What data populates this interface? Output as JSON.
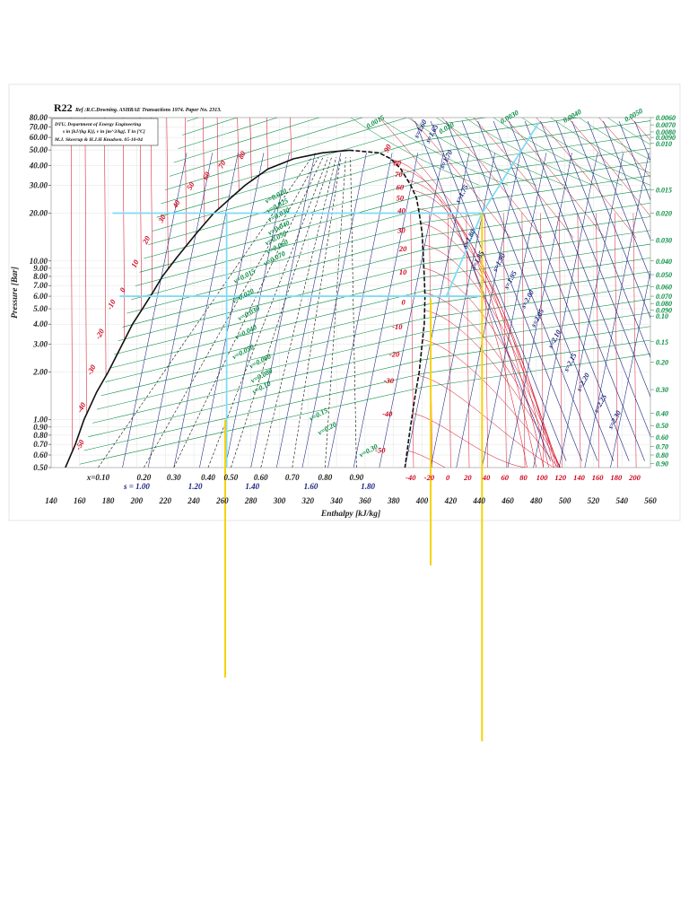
{
  "chart_data": {
    "type": "line",
    "title": "R22",
    "reference": "Ref :R.C.Downing. ASHRAE Transactions 1974. Paper No. 2313.",
    "legend_box": {
      "line1": "DTU, Department of Energy Engineering",
      "line2": "s in [kJ/(kg K)], v in [m^3/kg], T in [ºC]",
      "line3": "M.J. Skovrup & H.J.H Knudsen. 05-10-04"
    },
    "xlabel": "Enthalpy [kJ/kg]",
    "ylabel": "Pressure [Bar]",
    "xlim": [
      140,
      560
    ],
    "ylim": [
      0.5,
      80
    ],
    "yscale": "log",
    "x_ticks": [
      "140",
      "160",
      "180",
      "200",
      "220",
      "240",
      "260",
      "280",
      "300",
      "320",
      "340",
      "360",
      "380",
      "400",
      "420",
      "440",
      "460",
      "480",
      "500",
      "520",
      "540",
      "560"
    ],
    "y_ticks": [
      {
        "v": 80,
        "label": "80.00"
      },
      {
        "v": 70,
        "label": "70.00"
      },
      {
        "v": 60,
        "label": "60.00"
      },
      {
        "v": 50,
        "label": "50.00"
      },
      {
        "v": 40,
        "label": "40.00"
      },
      {
        "v": 30,
        "label": "30.00"
      },
      {
        "v": 20,
        "label": "20.00"
      },
      {
        "v": 10,
        "label": "10.00"
      },
      {
        "v": 9,
        "label": "9.00"
      },
      {
        "v": 8,
        "label": "8.00"
      },
      {
        "v": 7,
        "label": "7.00"
      },
      {
        "v": 6,
        "label": "6.00"
      },
      {
        "v": 5,
        "label": "5.00"
      },
      {
        "v": 4,
        "label": "4.00"
      },
      {
        "v": 3,
        "label": "3.00"
      },
      {
        "v": 2,
        "label": "2.00"
      },
      {
        "v": 1,
        "label": "1.00"
      },
      {
        "v": 0.9,
        "label": "0.90"
      },
      {
        "v": 0.8,
        "label": "0.80"
      },
      {
        "v": 0.7,
        "label": "0.70"
      },
      {
        "v": 0.6,
        "label": "0.60"
      },
      {
        "v": 0.5,
        "label": "0.50"
      }
    ],
    "x_quality_labels": [
      {
        "h": 173,
        "label": "x=0.10"
      },
      {
        "h": 205,
        "label": "0.20"
      },
      {
        "h": 226,
        "label": "0.30"
      },
      {
        "h": 250,
        "label": "0.40"
      },
      {
        "h": 266,
        "label": "0.50"
      },
      {
        "h": 287,
        "label": "0.60"
      },
      {
        "h": 309,
        "label": "0.70"
      },
      {
        "h": 332,
        "label": "0.80"
      },
      {
        "h": 354,
        "label": "0.90"
      }
    ],
    "s_bottom_labels": [
      {
        "h": 200,
        "label": "s = 1.00"
      },
      {
        "h": 241,
        "label": "1.20"
      },
      {
        "h": 281,
        "label": "1.40"
      },
      {
        "h": 322,
        "label": "1.60"
      },
      {
        "h": 362,
        "label": "1.80"
      }
    ],
    "bottom_temp_labels": [
      {
        "h": 392,
        "label": "-40"
      },
      {
        "h": 405,
        "label": "-20"
      },
      {
        "h": 418,
        "label": "0"
      },
      {
        "h": 432,
        "label": "20"
      },
      {
        "h": 445,
        "label": "40"
      },
      {
        "h": 458,
        "label": "60"
      },
      {
        "h": 471,
        "label": "80"
      },
      {
        "h": 484,
        "label": "100"
      },
      {
        "h": 497,
        "label": "120"
      },
      {
        "h": 510,
        "label": "140"
      },
      {
        "h": 523,
        "label": "160"
      },
      {
        "h": 536,
        "label": "180"
      },
      {
        "h": 549,
        "label": "200"
      }
    ],
    "saturation_liquid": [
      [
        150,
        0.5
      ],
      [
        157,
        0.7
      ],
      [
        163,
        1.0
      ],
      [
        172,
        1.5
      ],
      [
        180,
        2.0
      ],
      [
        190,
        3.0
      ],
      [
        197,
        4.0
      ],
      [
        204,
        5.0
      ],
      [
        212,
        6.5
      ],
      [
        218,
        8.0
      ],
      [
        228,
        10.5
      ],
      [
        242,
        15
      ],
      [
        254,
        20
      ],
      [
        266,
        25
      ],
      [
        276,
        30
      ],
      [
        292,
        38
      ],
      [
        310,
        44
      ],
      [
        330,
        48
      ],
      [
        349,
        49.8
      ]
    ],
    "saturation_vapor": [
      [
        349,
        49.8
      ],
      [
        370,
        48
      ],
      [
        378,
        44
      ],
      [
        385,
        38
      ],
      [
        392,
        30
      ],
      [
        396,
        25
      ],
      [
        398,
        20
      ],
      [
        400,
        15
      ],
      [
        401,
        10
      ],
      [
        401.5,
        8
      ],
      [
        402,
        6
      ],
      [
        401.5,
        4
      ],
      [
        400,
        3
      ],
      [
        398,
        2
      ],
      [
        395,
        1.4
      ],
      [
        391,
        0.8
      ],
      [
        388,
        0.5
      ]
    ],
    "left_temp_labels": [
      {
        "t": "-50",
        "h": 160,
        "p": 0.64
      },
      {
        "t": "-40",
        "h": 161,
        "p": 1.1
      },
      {
        "t": "-30",
        "h": 168,
        "p": 1.9
      },
      {
        "t": "-20",
        "h": 174,
        "p": 3.2
      },
      {
        "t": "-10",
        "h": 182,
        "p": 4.9
      },
      {
        "t": "0",
        "h": 191,
        "p": 6.3
      },
      {
        "t": "10",
        "h": 199,
        "p": 9.0
      },
      {
        "t": "20",
        "h": 207,
        "p": 12.7
      },
      {
        "t": "30",
        "h": 218,
        "p": 17.3
      },
      {
        "t": "40",
        "h": 228,
        "p": 21.4
      },
      {
        "t": "50",
        "h": 238,
        "p": 27.8
      },
      {
        "t": "60",
        "h": 249,
        "p": 32.2
      },
      {
        "t": "70",
        "h": 260,
        "p": 38.0
      },
      {
        "t": "80",
        "h": 274,
        "p": 43.5
      },
      {
        "t": "90",
        "h": 376,
        "p": 48.0
      }
    ],
    "right_temp_labels": [
      {
        "t": "80",
        "h": 394,
        "p": 40
      },
      {
        "t": "70",
        "h": 395,
        "p": 34
      },
      {
        "t": "60",
        "h": 396,
        "p": 28
      },
      {
        "t": "50",
        "h": 396,
        "p": 24
      },
      {
        "t": "40",
        "h": 397,
        "p": 20
      },
      {
        "t": "30",
        "h": 397,
        "p": 15
      },
      {
        "t": "20",
        "h": 398,
        "p": 11.5
      },
      {
        "t": "10",
        "h": 398,
        "p": 8.2
      },
      {
        "t": "0",
        "h": 397,
        "p": 5.3
      },
      {
        "t": "-10",
        "h": 395,
        "p": 3.7
      },
      {
        "t": "-20",
        "h": 393,
        "p": 2.5
      },
      {
        "t": "-30",
        "h": 389,
        "p": 1.7
      },
      {
        "t": "-40",
        "h": 388,
        "p": 1.05
      },
      {
        "t": "-50",
        "h": 383,
        "p": 0.62
      }
    ],
    "v_inner_labels": [
      {
        "t": "v=0.020",
        "h": 291,
        "p": 23
      },
      {
        "t": "v=0.025",
        "h": 292,
        "p": 20
      },
      {
        "t": "v=0.030",
        "h": 293,
        "p": 17.5
      },
      {
        "t": "v=0.040",
        "h": 293,
        "p": 14.5
      },
      {
        "t": "v=0.050",
        "h": 291,
        "p": 12.5
      },
      {
        "t": "v=0.060",
        "h": 292,
        "p": 11
      },
      {
        "t": "v=0.070",
        "h": 290,
        "p": 9.3
      },
      {
        "t": "v=0.015",
        "h": 269,
        "p": 7.2
      },
      {
        "t": "v=0.020",
        "h": 268,
        "p": 5.4
      },
      {
        "t": "v=0.030",
        "h": 272,
        "p": 4.2
      },
      {
        "t": "v=0.040",
        "h": 270,
        "p": 3.2
      },
      {
        "t": "v=0.050",
        "h": 268,
        "p": 2.4
      },
      {
        "t": "v=0.060",
        "h": 280,
        "p": 2.1
      },
      {
        "t": "v=0.080",
        "h": 281,
        "p": 1.7
      },
      {
        "t": "v=0.10",
        "h": 282,
        "p": 1.45
      },
      {
        "t": "v=0.15",
        "h": 322,
        "p": 0.98
      },
      {
        "t": "v=0.20",
        "h": 328,
        "p": 0.8
      },
      {
        "t": "v=0.30",
        "h": 357,
        "p": 0.58
      }
    ],
    "v_right_labels": [
      {
        "t": "0.0060",
        "p": 80
      },
      {
        "t": "0.0070",
        "p": 72
      },
      {
        "t": "0.0080",
        "p": 65
      },
      {
        "t": "0.0090",
        "p": 60
      },
      {
        "t": "0.010",
        "p": 55
      },
      {
        "t": "0.015",
        "p": 28
      },
      {
        "t": "0.020",
        "p": 20
      },
      {
        "t": "0.030",
        "p": 13.5
      },
      {
        "t": "0.040",
        "p": 10
      },
      {
        "t": "0.050",
        "p": 8.2
      },
      {
        "t": "0.060",
        "p": 6.9
      },
      {
        "t": "0.070",
        "p": 6.0
      },
      {
        "t": "0.080",
        "p": 5.4
      },
      {
        "t": "0.090",
        "p": 4.9
      },
      {
        "t": "0.10",
        "p": 4.5
      },
      {
        "t": "0.15",
        "p": 3.1
      },
      {
        "t": "0.20",
        "p": 2.3
      },
      {
        "t": "0.30",
        "p": 1.55
      },
      {
        "t": "0.40",
        "p": 1.1
      },
      {
        "t": "0.50",
        "p": 0.92
      },
      {
        "t": "0.60",
        "p": 0.78
      },
      {
        "t": "0.70",
        "p": 0.68
      },
      {
        "t": "0.80",
        "p": 0.6
      },
      {
        "t": "0.90",
        "p": 0.53
      }
    ],
    "v_top_labels": [
      {
        "t": "0.0015",
        "h": 362,
        "p": 68
      },
      {
        "t": "0.020",
        "h": 413,
        "p": 63
      },
      {
        "t": "0.0030",
        "h": 456,
        "p": 73
      },
      {
        "t": "0.0040",
        "h": 500,
        "p": 74
      },
      {
        "t": "0.0050",
        "h": 543,
        "p": 75
      }
    ],
    "s_line_labels": [
      {
        "t": "s=1.60",
        "h": 397,
        "p": 59
      },
      {
        "t": "s=1.65",
        "h": 405,
        "p": 55
      },
      {
        "t": "s=1.70",
        "h": 415,
        "p": 38
      },
      {
        "t": "s=1.75",
        "h": 426,
        "p": 23
      },
      {
        "t": "s=1.80",
        "h": 431,
        "p": 12
      },
      {
        "t": "s=1.85",
        "h": 437,
        "p": 8.8
      },
      {
        "t": "s=1.90",
        "h": 452,
        "p": 8.5
      },
      {
        "t": "s=1.95",
        "h": 460,
        "p": 6.6
      },
      {
        "t": "s=2.00",
        "h": 472,
        "p": 5.0
      },
      {
        "t": "s=2.05",
        "h": 479,
        "p": 3.8
      },
      {
        "t": "s=2.10",
        "h": 491,
        "p": 2.8
      },
      {
        "t": "s=2.15",
        "h": 502,
        "p": 2.0
      },
      {
        "t": "s=2.20",
        "h": 511,
        "p": 1.5
      },
      {
        "t": "s=2.25",
        "h": 523,
        "p": 1.1
      },
      {
        "t": "s=2.30",
        "h": 533,
        "p": 0.87
      }
    ],
    "overlays": {
      "cycle_cyan_color": "#7fdcf3",
      "marker_yellow_color": "#f5d20a",
      "grid_colors": {
        "temperature": "#d0021b",
        "volume": "#00893d",
        "entropy": "#1a237e",
        "quality": "#111111"
      },
      "high_pressure_line": {
        "p": 20,
        "h_from": 183,
        "h_to": 442
      },
      "low_pressure_line": {
        "p": 6,
        "h_from": 188,
        "h_to": 441
      },
      "cycle_vertical_left": {
        "h": 263,
        "p_from": 20,
        "p_to": 0.5
      },
      "compression_line": [
        [
          417,
          6
        ],
        [
          442,
          20
        ],
        [
          482,
          75
        ]
      ],
      "yellow_lines": [
        {
          "h": 262,
          "p_from": 1.0,
          "extend_px": 250
        },
        {
          "h": 406,
          "p_from": 5.8,
          "extend_px": 120
        },
        {
          "h": 442,
          "p_from": 20,
          "extend_px": 320
        }
      ]
    }
  }
}
